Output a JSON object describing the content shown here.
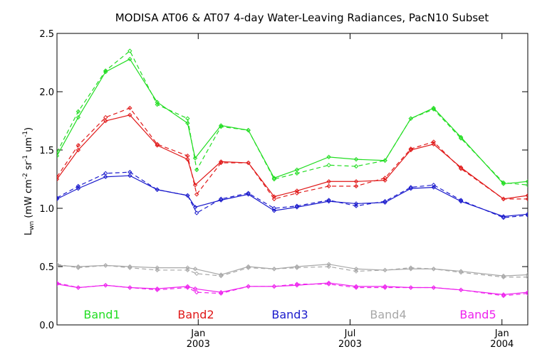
{
  "chart_data": {
    "type": "line",
    "title": "MODISA AT06 & AT07 4-day Water-Leaving Radiances, PacN10 Subset",
    "ylabel": {
      "main": "L",
      "sub": "wn",
      "units_prefix": "(mW cm",
      "exp1": "-2",
      "sr": " sr",
      "exp2": "-1",
      "um": " um",
      "exp3": "-1",
      "close": ")"
    },
    "ylim": [
      0.0,
      2.5
    ],
    "yticks": [
      "0.0",
      "0.5",
      "1.0",
      "1.5",
      "2.0",
      "2.5"
    ],
    "xticks": [
      {
        "month": "Jan",
        "year": "2003"
      },
      {
        "month": "Jul",
        "year": "2003"
      },
      {
        "month": "Jan",
        "year": "2004"
      }
    ],
    "xlim": [
      0,
      31
    ],
    "x_tick_positions": [
      9.3,
      19.3,
      29.3
    ],
    "line_styles": {
      "AT06": "solid",
      "AT07": "dashed"
    },
    "series": [
      {
        "name": "Band1",
        "color": "#22dd22",
        "AT06": [
          [
            0,
            1.45
          ],
          [
            1.4,
            1.78
          ],
          [
            3.2,
            2.17
          ],
          [
            4.8,
            2.28
          ],
          [
            6.6,
            1.91
          ],
          [
            8.6,
            1.73
          ],
          [
            9.1,
            1.43
          ],
          [
            10.8,
            1.71
          ],
          [
            12.6,
            1.67
          ],
          [
            14.3,
            1.26
          ],
          [
            15.8,
            1.33
          ],
          [
            17.9,
            1.44
          ],
          [
            19.7,
            1.42
          ],
          [
            21.6,
            1.41
          ],
          [
            23.3,
            1.77
          ],
          [
            24.8,
            1.86
          ],
          [
            26.6,
            1.61
          ],
          [
            29.4,
            1.21
          ],
          [
            31,
            1.23
          ]
        ],
        "AT07": [
          [
            0,
            1.48
          ],
          [
            1.4,
            1.83
          ],
          [
            3.2,
            2.18
          ],
          [
            4.8,
            2.35
          ],
          [
            6.6,
            1.89
          ],
          [
            8.6,
            1.77
          ],
          [
            9.2,
            1.33
          ],
          [
            10.8,
            1.7
          ],
          [
            12.6,
            1.67
          ],
          [
            14.3,
            1.25
          ],
          [
            15.8,
            1.3
          ],
          [
            17.9,
            1.37
          ],
          [
            19.7,
            1.36
          ],
          [
            21.6,
            1.41
          ],
          [
            23.3,
            1.77
          ],
          [
            24.8,
            1.85
          ],
          [
            26.6,
            1.6
          ],
          [
            29.4,
            1.22
          ],
          [
            31,
            1.2
          ]
        ]
      },
      {
        "name": "Band2",
        "color": "#e01818",
        "AT06": [
          [
            0,
            1.25
          ],
          [
            1.4,
            1.5
          ],
          [
            3.2,
            1.75
          ],
          [
            4.8,
            1.8
          ],
          [
            6.6,
            1.54
          ],
          [
            8.6,
            1.42
          ],
          [
            9.1,
            1.2
          ],
          [
            10.8,
            1.4
          ],
          [
            12.6,
            1.39
          ],
          [
            14.3,
            1.1
          ],
          [
            15.8,
            1.15
          ],
          [
            17.9,
            1.23
          ],
          [
            19.7,
            1.23
          ],
          [
            21.6,
            1.24
          ],
          [
            23.3,
            1.5
          ],
          [
            24.8,
            1.55
          ],
          [
            26.6,
            1.35
          ],
          [
            29.4,
            1.08
          ],
          [
            31,
            1.11
          ]
        ],
        "AT07": [
          [
            0,
            1.27
          ],
          [
            1.4,
            1.54
          ],
          [
            3.2,
            1.78
          ],
          [
            4.8,
            1.86
          ],
          [
            6.6,
            1.55
          ],
          [
            8.6,
            1.45
          ],
          [
            9.2,
            1.12
          ],
          [
            10.8,
            1.39
          ],
          [
            12.6,
            1.39
          ],
          [
            14.3,
            1.08
          ],
          [
            15.8,
            1.13
          ],
          [
            17.9,
            1.19
          ],
          [
            19.7,
            1.19
          ],
          [
            21.6,
            1.26
          ],
          [
            23.3,
            1.51
          ],
          [
            24.8,
            1.57
          ],
          [
            26.6,
            1.34
          ],
          [
            29.4,
            1.08
          ],
          [
            31,
            1.08
          ]
        ]
      },
      {
        "name": "Band3",
        "color": "#1a1acc",
        "AT06": [
          [
            0,
            1.08
          ],
          [
            1.4,
            1.17
          ],
          [
            3.2,
            1.27
          ],
          [
            4.8,
            1.28
          ],
          [
            6.6,
            1.16
          ],
          [
            8.6,
            1.11
          ],
          [
            9.1,
            1.01
          ],
          [
            10.8,
            1.07
          ],
          [
            12.6,
            1.12
          ],
          [
            14.3,
            0.98
          ],
          [
            15.8,
            1.01
          ],
          [
            17.9,
            1.06
          ],
          [
            19.7,
            1.04
          ],
          [
            21.6,
            1.05
          ],
          [
            23.3,
            1.17
          ],
          [
            24.8,
            1.18
          ],
          [
            26.6,
            1.06
          ],
          [
            29.4,
            0.93
          ],
          [
            31,
            0.95
          ]
        ],
        "AT07": [
          [
            0,
            1.09
          ],
          [
            1.4,
            1.19
          ],
          [
            3.2,
            1.3
          ],
          [
            4.8,
            1.31
          ],
          [
            6.6,
            1.16
          ],
          [
            8.6,
            1.11
          ],
          [
            9.2,
            0.96
          ],
          [
            10.8,
            1.08
          ],
          [
            12.6,
            1.13
          ],
          [
            14.3,
            1.0
          ],
          [
            15.8,
            1.02
          ],
          [
            17.9,
            1.07
          ],
          [
            19.7,
            1.02
          ],
          [
            21.6,
            1.06
          ],
          [
            23.3,
            1.18
          ],
          [
            24.8,
            1.2
          ],
          [
            26.6,
            1.07
          ],
          [
            29.4,
            0.92
          ],
          [
            31,
            0.94
          ]
        ]
      },
      {
        "name": "Band4",
        "color": "#a8a8a8",
        "AT06": [
          [
            0,
            0.51
          ],
          [
            1.4,
            0.5
          ],
          [
            3.2,
            0.51
          ],
          [
            4.8,
            0.5
          ],
          [
            6.6,
            0.49
          ],
          [
            8.6,
            0.49
          ],
          [
            9.1,
            0.48
          ],
          [
            10.8,
            0.43
          ],
          [
            12.6,
            0.5
          ],
          [
            14.3,
            0.48
          ],
          [
            15.8,
            0.5
          ],
          [
            17.9,
            0.52
          ],
          [
            19.7,
            0.48
          ],
          [
            21.6,
            0.47
          ],
          [
            23.3,
            0.48
          ],
          [
            24.8,
            0.48
          ],
          [
            26.6,
            0.46
          ],
          [
            29.4,
            0.42
          ],
          [
            31,
            0.43
          ]
        ],
        "AT07": [
          [
            0,
            0.52
          ],
          [
            1.4,
            0.49
          ],
          [
            3.2,
            0.51
          ],
          [
            4.8,
            0.49
          ],
          [
            6.6,
            0.47
          ],
          [
            8.6,
            0.47
          ],
          [
            9.2,
            0.44
          ],
          [
            10.8,
            0.42
          ],
          [
            12.6,
            0.49
          ],
          [
            14.3,
            0.48
          ],
          [
            15.8,
            0.49
          ],
          [
            17.9,
            0.5
          ],
          [
            19.7,
            0.46
          ],
          [
            21.6,
            0.47
          ],
          [
            23.3,
            0.49
          ],
          [
            24.8,
            0.48
          ],
          [
            26.6,
            0.45
          ],
          [
            29.4,
            0.41
          ],
          [
            31,
            0.41
          ]
        ]
      },
      {
        "name": "Band5",
        "color": "#ee22ee",
        "AT06": [
          [
            0,
            0.35
          ],
          [
            1.4,
            0.32
          ],
          [
            3.2,
            0.34
          ],
          [
            4.8,
            0.32
          ],
          [
            6.6,
            0.31
          ],
          [
            8.6,
            0.33
          ],
          [
            9.1,
            0.31
          ],
          [
            10.8,
            0.28
          ],
          [
            12.6,
            0.33
          ],
          [
            14.3,
            0.33
          ],
          [
            15.8,
            0.34
          ],
          [
            17.9,
            0.36
          ],
          [
            19.7,
            0.33
          ],
          [
            21.6,
            0.33
          ],
          [
            23.3,
            0.32
          ],
          [
            24.8,
            0.32
          ],
          [
            26.6,
            0.3
          ],
          [
            29.4,
            0.26
          ],
          [
            31,
            0.28
          ]
        ],
        "AT07": [
          [
            0,
            0.36
          ],
          [
            1.4,
            0.32
          ],
          [
            3.2,
            0.34
          ],
          [
            4.8,
            0.32
          ],
          [
            6.6,
            0.3
          ],
          [
            8.6,
            0.32
          ],
          [
            9.2,
            0.28
          ],
          [
            10.8,
            0.27
          ],
          [
            12.6,
            0.33
          ],
          [
            14.3,
            0.33
          ],
          [
            15.8,
            0.35
          ],
          [
            17.9,
            0.35
          ],
          [
            19.7,
            0.32
          ],
          [
            21.6,
            0.32
          ],
          [
            23.3,
            0.32
          ],
          [
            24.8,
            0.32
          ],
          [
            26.6,
            0.3
          ],
          [
            29.4,
            0.25
          ],
          [
            31,
            0.27
          ]
        ]
      }
    ]
  }
}
